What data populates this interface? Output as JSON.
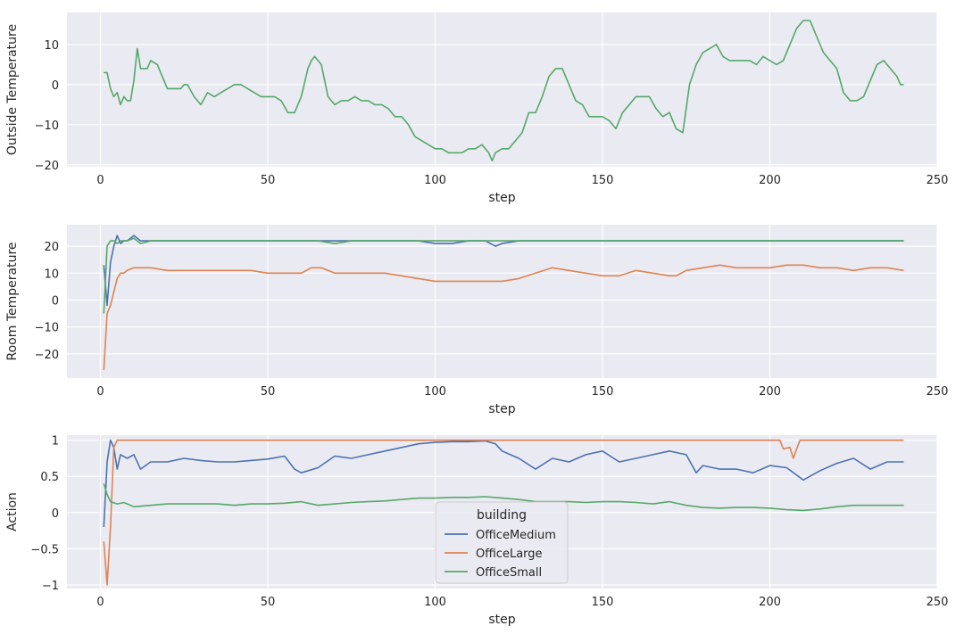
{
  "chart_data": [
    {
      "type": "line",
      "xlabel": "step",
      "ylabel": "Outside Temperature",
      "xlim": [
        -10,
        250
      ],
      "ylim": [
        -20.5,
        18
      ],
      "xticks": [
        0,
        50,
        100,
        150,
        200,
        250
      ],
      "yticks": [
        -20,
        -10,
        0,
        10
      ],
      "grid": true,
      "series": [
        {
          "color": "#55a868",
          "x": [
            1,
            2,
            3,
            4,
            5,
            6,
            7,
            8,
            9,
            10,
            11,
            12,
            14,
            15,
            17,
            18,
            20,
            22,
            24,
            25,
            26,
            28,
            30,
            32,
            34,
            36,
            38,
            40,
            42,
            44,
            46,
            48,
            50,
            52,
            54,
            56,
            58,
            60,
            62,
            63,
            64,
            65,
            66,
            68,
            70,
            72,
            74,
            76,
            78,
            80,
            82,
            84,
            86,
            88,
            90,
            92,
            94,
            96,
            98,
            100,
            102,
            104,
            106,
            108,
            110,
            112,
            114,
            116,
            117,
            118,
            120,
            122,
            124,
            126,
            128,
            130,
            132,
            134,
            136,
            138,
            140,
            142,
            144,
            146,
            148,
            150,
            152,
            154,
            156,
            158,
            160,
            162,
            164,
            166,
            168,
            170,
            171,
            172,
            174,
            176,
            178,
            180,
            182,
            184,
            186,
            188,
            190,
            192,
            194,
            196,
            198,
            200,
            202,
            204,
            206,
            208,
            210,
            212,
            214,
            216,
            218,
            220,
            222,
            224,
            226,
            228,
            230,
            232,
            234,
            236,
            238,
            239,
            240
          ],
          "y": [
            3,
            3,
            -1,
            -3,
            -2,
            -5,
            -3,
            -4,
            -4,
            1,
            9,
            4,
            4,
            6,
            5,
            3,
            -1,
            -1,
            -1,
            0,
            0,
            -3,
            -5,
            -2,
            -3,
            -2,
            -1,
            0,
            0,
            -1,
            -2,
            -3,
            -3,
            -3,
            -4,
            -7,
            -7,
            -3,
            4,
            6,
            7,
            6,
            5,
            -3,
            -5,
            -4,
            -4,
            -3,
            -4,
            -4,
            -5,
            -5,
            -6,
            -8,
            -8,
            -10,
            -13,
            -14,
            -15,
            -16,
            -16,
            -17,
            -17,
            -17,
            -16,
            -16,
            -15,
            -17,
            -19,
            -17,
            -16,
            -16,
            -14,
            -12,
            -7,
            -7,
            -3,
            2,
            4,
            4,
            0,
            -4,
            -5,
            -8,
            -8,
            -8,
            -9,
            -11,
            -7,
            -5,
            -3,
            -3,
            -3,
            -6,
            -8,
            -7,
            -9,
            -11,
            -12,
            0,
            5,
            8,
            9,
            10,
            7,
            6,
            6,
            6,
            6,
            5,
            7,
            6,
            5,
            6,
            10,
            14,
            16,
            16,
            12,
            8,
            6,
            4,
            -2,
            -4,
            -4,
            -3,
            1,
            5,
            6,
            4,
            2,
            0,
            0
          ]
        }
      ]
    },
    {
      "type": "line",
      "xlabel": "step",
      "ylabel": "Room Temperature",
      "xlim": [
        -10,
        250
      ],
      "ylim": [
        -29,
        28
      ],
      "xticks": [
        0,
        50,
        100,
        150,
        200,
        250
      ],
      "yticks": [
        -20,
        -10,
        0,
        10,
        20
      ],
      "grid": true,
      "series": [
        {
          "color": "#4c72b0",
          "x": [
            1,
            2,
            3,
            4,
            5,
            6,
            7,
            8,
            10,
            12,
            15,
            20,
            25,
            30,
            35,
            40,
            45,
            50,
            55,
            60,
            65,
            70,
            75,
            80,
            85,
            90,
            95,
            100,
            105,
            110,
            115,
            118,
            120,
            125,
            130,
            135,
            140,
            145,
            150,
            155,
            160,
            165,
            170,
            175,
            180,
            185,
            190,
            195,
            200,
            205,
            210,
            215,
            220,
            225,
            230,
            235,
            240
          ],
          "y": [
            13,
            -2,
            14,
            20,
            24,
            21,
            22,
            22,
            24,
            22,
            22,
            22,
            22,
            22,
            22,
            22,
            22,
            22,
            22,
            22,
            22,
            22,
            22,
            22,
            22,
            22,
            22,
            21,
            21,
            22,
            22,
            20,
            21,
            22,
            22,
            22,
            22,
            22,
            22,
            22,
            22,
            22,
            22,
            22,
            22,
            22,
            22,
            22,
            22,
            22,
            22,
            22,
            22,
            22,
            22,
            22,
            22
          ]
        },
        {
          "color": "#dd8452",
          "x": [
            1,
            2,
            3,
            4,
            5,
            6,
            7,
            8,
            10,
            12,
            15,
            20,
            25,
            30,
            35,
            40,
            45,
            50,
            55,
            60,
            63,
            66,
            70,
            75,
            80,
            85,
            90,
            95,
            100,
            105,
            110,
            115,
            120,
            125,
            130,
            135,
            140,
            145,
            150,
            155,
            160,
            165,
            170,
            172,
            175,
            180,
            185,
            190,
            195,
            200,
            205,
            210,
            215,
            220,
            225,
            230,
            235,
            240
          ],
          "y": [
            -26,
            -5,
            -2,
            3,
            8,
            10,
            10,
            11,
            12,
            12,
            12,
            11,
            11,
            11,
            11,
            11,
            11,
            10,
            10,
            10,
            12,
            12,
            10,
            10,
            10,
            10,
            9,
            8,
            7,
            7,
            7,
            7,
            7,
            8,
            10,
            12,
            11,
            10,
            9,
            9,
            11,
            10,
            9,
            9,
            11,
            12,
            13,
            12,
            12,
            12,
            13,
            13,
            12,
            12,
            11,
            12,
            12,
            11
          ]
        },
        {
          "color": "#55a868",
          "x": [
            1,
            2,
            3,
            4,
            5,
            6,
            7,
            8,
            10,
            12,
            15,
            20,
            25,
            30,
            35,
            40,
            45,
            50,
            55,
            60,
            65,
            70,
            75,
            80,
            85,
            90,
            95,
            100,
            105,
            110,
            115,
            120,
            125,
            130,
            135,
            140,
            145,
            150,
            155,
            160,
            165,
            170,
            175,
            180,
            185,
            190,
            195,
            200,
            205,
            210,
            215,
            220,
            225,
            230,
            235,
            240
          ],
          "y": [
            -5,
            20,
            22,
            22,
            21,
            22,
            22,
            22,
            23,
            21,
            22,
            22,
            22,
            22,
            22,
            22,
            22,
            22,
            22,
            22,
            22,
            21,
            22,
            22,
            22,
            22,
            22,
            22,
            22,
            22,
            22,
            22,
            22,
            22,
            22,
            22,
            22,
            22,
            22,
            22,
            22,
            22,
            22,
            22,
            22,
            22,
            22,
            22,
            22,
            22,
            22,
            22,
            22,
            22,
            22,
            22
          ]
        }
      ]
    },
    {
      "type": "line",
      "xlabel": "step",
      "ylabel": "Action",
      "xlim": [
        -10,
        250
      ],
      "ylim": [
        -1.05,
        1.07
      ],
      "xticks": [
        0,
        50,
        100,
        150,
        200,
        250
      ],
      "yticks": [
        -1.0,
        -0.5,
        0.0,
        0.5,
        1.0
      ],
      "grid": true,
      "legend": {
        "title": "building",
        "position": "lower-center"
      },
      "series": [
        {
          "name": "OfficeMedium",
          "color": "#4c72b0",
          "x": [
            1,
            2,
            3,
            4,
            5,
            6,
            8,
            10,
            12,
            15,
            20,
            25,
            30,
            35,
            40,
            45,
            50,
            55,
            58,
            60,
            65,
            70,
            75,
            80,
            85,
            90,
            95,
            100,
            105,
            110,
            115,
            118,
            120,
            125,
            130,
            135,
            140,
            145,
            150,
            155,
            160,
            165,
            170,
            175,
            178,
            180,
            185,
            190,
            195,
            200,
            205,
            210,
            215,
            220,
            225,
            230,
            235,
            240
          ],
          "y": [
            -0.2,
            0.7,
            1.0,
            0.9,
            0.6,
            0.8,
            0.75,
            0.8,
            0.6,
            0.7,
            0.7,
            0.75,
            0.72,
            0.7,
            0.7,
            0.72,
            0.74,
            0.78,
            0.6,
            0.55,
            0.62,
            0.78,
            0.75,
            0.8,
            0.85,
            0.9,
            0.95,
            0.97,
            0.98,
            0.98,
            0.99,
            0.95,
            0.85,
            0.75,
            0.6,
            0.75,
            0.7,
            0.8,
            0.85,
            0.7,
            0.75,
            0.8,
            0.85,
            0.8,
            0.55,
            0.65,
            0.6,
            0.6,
            0.55,
            0.65,
            0.62,
            0.45,
            0.58,
            0.68,
            0.75,
            0.6,
            0.7,
            0.7
          ]
        },
        {
          "name": "OfficeLarge",
          "color": "#dd8452",
          "x": [
            1,
            2,
            3,
            4,
            5,
            10,
            50,
            100,
            150,
            200,
            203,
            204,
            206,
            207,
            208,
            209,
            210,
            240
          ],
          "y": [
            -0.4,
            -1.0,
            -0.2,
            0.9,
            1.0,
            1.0,
            1.0,
            1.0,
            1.0,
            1.0,
            1.0,
            0.88,
            0.9,
            0.75,
            0.88,
            1.0,
            1.0,
            1.0
          ]
        },
        {
          "name": "OfficeSmall",
          "color": "#55a868",
          "x": [
            1,
            2,
            3,
            5,
            7,
            10,
            15,
            20,
            25,
            30,
            35,
            40,
            45,
            50,
            55,
            60,
            65,
            70,
            75,
            80,
            85,
            90,
            95,
            100,
            105,
            110,
            115,
            120,
            125,
            130,
            135,
            140,
            145,
            150,
            155,
            160,
            165,
            170,
            175,
            180,
            185,
            190,
            195,
            200,
            205,
            210,
            215,
            220,
            225,
            230,
            235,
            240
          ],
          "y": [
            0.4,
            0.25,
            0.15,
            0.12,
            0.14,
            0.08,
            0.1,
            0.12,
            0.12,
            0.12,
            0.12,
            0.1,
            0.12,
            0.12,
            0.13,
            0.15,
            0.1,
            0.12,
            0.14,
            0.15,
            0.16,
            0.18,
            0.2,
            0.2,
            0.21,
            0.21,
            0.22,
            0.2,
            0.18,
            0.15,
            0.15,
            0.15,
            0.14,
            0.15,
            0.15,
            0.14,
            0.12,
            0.15,
            0.1,
            0.07,
            0.06,
            0.07,
            0.07,
            0.06,
            0.04,
            0.03,
            0.05,
            0.08,
            0.1,
            0.1,
            0.1,
            0.1
          ]
        }
      ]
    }
  ]
}
